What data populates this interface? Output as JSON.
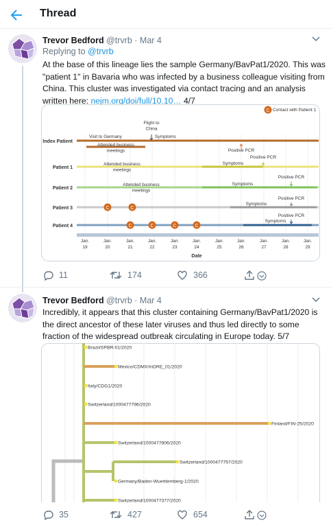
{
  "header": {
    "title": "Thread"
  },
  "tweets": [
    {
      "name": "Trevor Bedford",
      "handle": "@trvrb",
      "date": "· Mar 4",
      "reply_prefix": "Replying to",
      "reply_to": "@trvrb",
      "text": [
        "At the base of this lineage lies the sample Germany/BavPat1/2020. This was",
        "\"patient 1\" in Bavaria who was infected by a business colleague visiting from",
        "China.  This cluster was investigated via contact tracing and an analysis",
        "written here:"
      ],
      "link": "nejm.org/doi/full/10.10…",
      "suffix": "4/7",
      "replies": 11,
      "retweets": 174,
      "likes": 366
    },
    {
      "name": "Trevor Bedford",
      "handle": "@trvrb",
      "date": "· Mar 4",
      "text": [
        "Incredibly, it appears that this cluster containing Germany/BavPat1/2020 is",
        "the direct ancestor of these later viruses and thus led directly to some",
        "fraction of the widespread outbreak circulating in Europe today."
      ],
      "suffix": "5/7",
      "replies": 35,
      "retweets": 427,
      "likes": 654
    }
  ],
  "timeline": {
    "contact_marker": "C",
    "legend": "Contact with Patient 1",
    "rows": [
      "Index Patient",
      "Patient 1",
      "Patient 2",
      "Patient 3",
      "Patient 4"
    ],
    "events": [
      {
        "lines": [
          "Visit to Germany"
        ]
      },
      {
        "lines": [
          "Flight to",
          "China"
        ]
      },
      {
        "lines": [
          "Symptoms"
        ]
      },
      {
        "lines": [
          "Attended business",
          "meetings"
        ]
      },
      {
        "lines": [
          "Positive PCR"
        ]
      },
      {
        "lines": [
          "Attended business",
          "meetings"
        ]
      },
      {
        "lines": [
          "Symptoms"
        ]
      },
      {
        "lines": [
          "Positive PCR"
        ]
      },
      {
        "lines": [
          "Attended business",
          "meetings"
        ]
      },
      {
        "lines": [
          "Symptoms"
        ]
      },
      {
        "lines": [
          "Positive PCR"
        ]
      },
      {
        "lines": [
          "Symptoms"
        ]
      },
      {
        "lines": [
          "Positive PCR"
        ]
      },
      {
        "lines": [
          "Symptoms"
        ]
      },
      {
        "lines": [
          "Positive PCR"
        ]
      }
    ],
    "dates": [
      {
        "m": "Jan.",
        "d": "19"
      },
      {
        "m": "Jan.",
        "d": "20"
      },
      {
        "m": "Jan.",
        "d": "21"
      },
      {
        "m": "Jan.",
        "d": "22"
      },
      {
        "m": "Jan.",
        "d": "23"
      },
      {
        "m": "Jan.",
        "d": "24"
      },
      {
        "m": "Jan.",
        "d": "25"
      },
      {
        "m": "Jan.",
        "d": "26"
      },
      {
        "m": "Jan.",
        "d": "27"
      },
      {
        "m": "Jan.",
        "d": "28"
      },
      {
        "m": "Jan.",
        "d": "29"
      }
    ],
    "x_label": "Date"
  },
  "tree": {
    "labels": [
      "Brazil/SPBR-01/2020",
      "Mexico/CDMX/InDRE_01/2020",
      "Italy/CDG1/2020",
      "Switzerland/1000477796/2020",
      "Finland/FIN-25/2020",
      "Switzerland/1000477806/2020",
      "Switzerland/1000477757/2020",
      "Germany/Baden-Wuerttemberg-1/2020",
      "Switzerland/1000477377/2020"
    ]
  }
}
